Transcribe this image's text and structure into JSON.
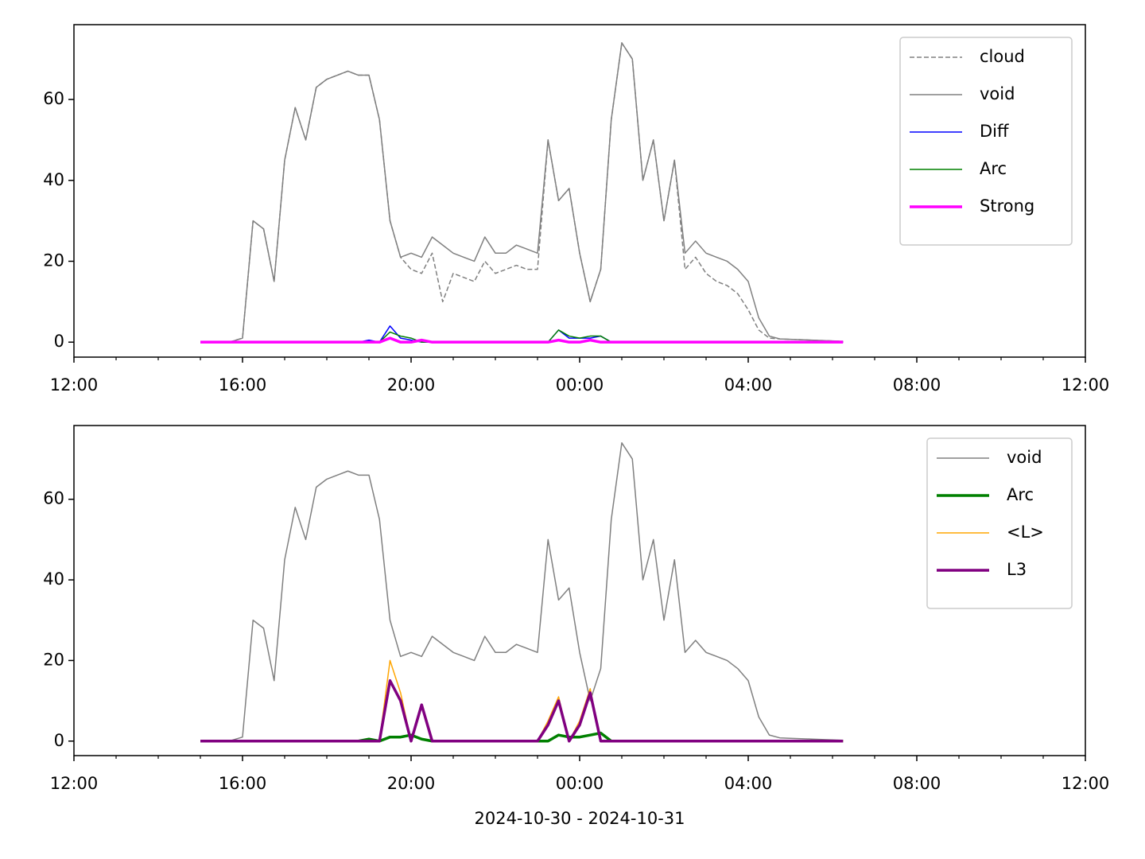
{
  "chart_data": [
    {
      "type": "line",
      "x": [
        "15:00",
        "15:15",
        "15:30",
        "15:45",
        "16:00",
        "16:15",
        "16:30",
        "16:45",
        "17:00",
        "17:15",
        "17:30",
        "17:45",
        "18:00",
        "18:15",
        "18:30",
        "18:45",
        "19:00",
        "19:15",
        "19:30",
        "19:45",
        "20:00",
        "20:15",
        "20:30",
        "20:45",
        "21:00",
        "21:15",
        "21:30",
        "21:45",
        "22:00",
        "22:15",
        "22:30",
        "22:45",
        "23:00",
        "23:15",
        "23:30",
        "23:45",
        "00:00",
        "00:15",
        "00:30",
        "00:45",
        "01:00",
        "01:15",
        "01:30",
        "01:45",
        "02:00",
        "02:15",
        "02:30",
        "02:45",
        "03:00",
        "03:15",
        "03:30",
        "03:45",
        "04:00",
        "04:15",
        "04:30",
        "04:45",
        "05:00",
        "05:15",
        "05:30",
        "05:45",
        "06:00",
        "06:15"
      ],
      "series": [
        {
          "name": "cloud",
          "color": "#808080",
          "linestyle": "dashed",
          "linewidth": 1.5,
          "values": [
            0,
            0,
            0,
            0.2,
            1,
            30,
            28,
            15,
            45,
            58,
            50,
            63,
            65,
            66,
            67,
            66,
            66,
            55,
            30,
            21,
            18,
            17,
            22,
            10,
            17,
            16,
            15,
            20,
            17,
            18,
            19,
            18,
            18,
            50,
            35,
            38,
            22,
            10,
            18,
            55,
            74,
            70,
            40,
            50,
            30,
            45,
            18,
            21,
            17,
            15,
            14,
            12,
            8,
            3,
            1,
            0.8,
            0.7,
            0.6,
            0.5,
            0.4,
            0.3,
            0.2
          ]
        },
        {
          "name": "void",
          "color": "#808080",
          "linestyle": "solid",
          "linewidth": 1.5,
          "values": [
            0,
            0,
            0,
            0.2,
            1,
            30,
            28,
            15,
            45,
            58,
            50,
            63,
            65,
            66,
            67,
            66,
            66,
            55,
            30,
            21,
            22,
            21,
            26,
            24,
            22,
            21,
            20,
            26,
            22,
            22,
            24,
            23,
            22,
            50,
            35,
            38,
            22,
            10,
            18,
            55,
            74,
            70,
            40,
            50,
            30,
            45,
            22,
            25,
            22,
            21,
            20,
            18,
            15,
            6,
            1.5,
            0.8,
            0.7,
            0.6,
            0.5,
            0.4,
            0.3,
            0.2
          ]
        },
        {
          "name": "Diff",
          "color": "#0000ff",
          "linestyle": "solid",
          "linewidth": 1.5,
          "values": [
            0,
            0,
            0,
            0,
            0,
            0,
            0,
            0,
            0,
            0,
            0,
            0,
            0,
            0,
            0,
            0,
            0.5,
            0,
            4,
            1,
            0.5,
            0,
            0,
            0,
            0,
            0,
            0,
            0,
            0,
            0,
            0,
            0,
            0,
            0,
            3,
            1,
            1,
            1,
            1.5,
            0,
            0,
            0,
            0,
            0,
            0,
            0,
            0,
            0,
            0,
            0,
            0,
            0,
            0,
            0,
            0,
            0,
            0,
            0,
            0,
            0,
            0,
            0
          ]
        },
        {
          "name": "Arc",
          "color": "#008000",
          "linestyle": "solid",
          "linewidth": 1.5,
          "values": [
            0,
            0,
            0,
            0,
            0,
            0,
            0,
            0,
            0,
            0,
            0,
            0,
            0,
            0,
            0,
            0,
            0,
            0,
            2.5,
            1.5,
            1,
            0,
            0,
            0,
            0,
            0,
            0,
            0,
            0,
            0,
            0,
            0,
            0,
            0,
            3,
            1.5,
            1,
            1.5,
            1.5,
            0,
            0,
            0,
            0,
            0,
            0,
            0,
            0,
            0,
            0,
            0,
            0,
            0,
            0,
            0,
            0,
            0,
            0,
            0,
            0,
            0,
            0,
            0
          ]
        },
        {
          "name": "Strong",
          "color": "#ff00ff",
          "linestyle": "solid",
          "linewidth": 3.5,
          "values": [
            0,
            0,
            0,
            0,
            0,
            0,
            0,
            0,
            0,
            0,
            0,
            0,
            0,
            0,
            0,
            0,
            0,
            0,
            1,
            0,
            0,
            0.5,
            0,
            0,
            0,
            0,
            0,
            0,
            0,
            0,
            0,
            0,
            0,
            0,
            0.5,
            0,
            0,
            0.5,
            0,
            0,
            0,
            0,
            0,
            0,
            0,
            0,
            0,
            0,
            0,
            0,
            0,
            0,
            0,
            0,
            0,
            0,
            0,
            0,
            0,
            0,
            0,
            0
          ]
        }
      ],
      "xlim": [
        "12:00",
        "12:00"
      ],
      "xticks": [
        "12:00",
        "16:00",
        "20:00",
        "00:00",
        "04:00",
        "08:00",
        "12:00"
      ],
      "ylim": [
        -3.7,
        78.5
      ],
      "yticks": [
        0,
        20,
        40,
        60
      ],
      "legend": "upper right"
    },
    {
      "type": "line",
      "x": [
        "15:00",
        "15:15",
        "15:30",
        "15:45",
        "16:00",
        "16:15",
        "16:30",
        "16:45",
        "17:00",
        "17:15",
        "17:30",
        "17:45",
        "18:00",
        "18:15",
        "18:30",
        "18:45",
        "19:00",
        "19:15",
        "19:30",
        "19:45",
        "20:00",
        "20:15",
        "20:30",
        "20:45",
        "21:00",
        "21:15",
        "21:30",
        "21:45",
        "22:00",
        "22:15",
        "22:30",
        "22:45",
        "23:00",
        "23:15",
        "23:30",
        "23:45",
        "00:00",
        "00:15",
        "00:30",
        "00:45",
        "01:00",
        "01:15",
        "01:30",
        "01:45",
        "02:00",
        "02:15",
        "02:30",
        "02:45",
        "03:00",
        "03:15",
        "03:30",
        "03:45",
        "04:00",
        "04:15",
        "04:30",
        "04:45",
        "05:00",
        "05:15",
        "05:30",
        "05:45",
        "06:00",
        "06:15"
      ],
      "series": [
        {
          "name": "void",
          "color": "#808080",
          "linestyle": "solid",
          "linewidth": 1.5,
          "values": [
            0,
            0,
            0,
            0.2,
            1,
            30,
            28,
            15,
            45,
            58,
            50,
            63,
            65,
            66,
            67,
            66,
            66,
            55,
            30,
            21,
            22,
            21,
            26,
            24,
            22,
            21,
            20,
            26,
            22,
            22,
            24,
            23,
            22,
            50,
            35,
            38,
            22,
            10,
            18,
            55,
            74,
            70,
            40,
            50,
            30,
            45,
            22,
            25,
            22,
            21,
            20,
            18,
            15,
            6,
            1.5,
            0.8,
            0.7,
            0.6,
            0.5,
            0.4,
            0.3,
            0.2
          ]
        },
        {
          "name": "Arc",
          "color": "#008000",
          "linestyle": "solid",
          "linewidth": 3.5,
          "values": [
            0,
            0,
            0,
            0,
            0,
            0,
            0,
            0,
            0,
            0,
            0,
            0,
            0,
            0,
            0,
            0,
            0.5,
            0,
            1,
            1,
            1.5,
            0.5,
            0,
            0,
            0,
            0,
            0,
            0,
            0,
            0,
            0,
            0,
            0,
            0,
            1.5,
            1,
            1,
            1.5,
            2,
            0,
            0,
            0,
            0,
            0,
            0,
            0,
            0,
            0,
            0,
            0,
            0,
            0,
            0,
            0,
            0,
            0,
            0,
            0,
            0,
            0,
            0,
            0
          ]
        },
        {
          "name": "<L>",
          "color": "#ffa500",
          "linestyle": "solid",
          "linewidth": 1.5,
          "values": [
            0,
            0,
            0,
            0,
            0,
            0,
            0,
            0,
            0,
            0,
            0,
            0,
            0,
            0,
            0,
            0,
            0,
            0,
            20,
            12,
            0,
            9,
            0,
            0,
            0,
            0,
            0,
            0,
            0,
            0,
            0,
            0,
            0,
            5,
            11,
            0,
            5,
            13,
            0,
            0,
            0,
            0,
            0,
            0,
            0,
            0,
            0,
            0,
            0,
            0,
            0,
            0,
            0,
            0,
            0,
            0,
            0,
            0,
            0,
            0,
            0,
            0
          ]
        },
        {
          "name": "L3",
          "color": "#800080",
          "linestyle": "solid",
          "linewidth": 3.5,
          "values": [
            0,
            0,
            0,
            0,
            0,
            0,
            0,
            0,
            0,
            0,
            0,
            0,
            0,
            0,
            0,
            0,
            0,
            0,
            15,
            10,
            0,
            9,
            0,
            0,
            0,
            0,
            0,
            0,
            0,
            0,
            0,
            0,
            0,
            4,
            10,
            0,
            4,
            12,
            0,
            0,
            0,
            0,
            0,
            0,
            0,
            0,
            0,
            0,
            0,
            0,
            0,
            0,
            0,
            0,
            0,
            0,
            0,
            0,
            0,
            0,
            0,
            0
          ]
        }
      ],
      "xlim": [
        "12:00",
        "12:00"
      ],
      "xticks": [
        "12:00",
        "16:00",
        "20:00",
        "00:00",
        "04:00",
        "08:00",
        "12:00"
      ],
      "ylim": [
        -3.6,
        78.3
      ],
      "yticks": [
        0,
        20,
        40,
        60
      ],
      "legend": "upper right",
      "xlabel": "2024-10-30 - 2024-10-31"
    }
  ]
}
